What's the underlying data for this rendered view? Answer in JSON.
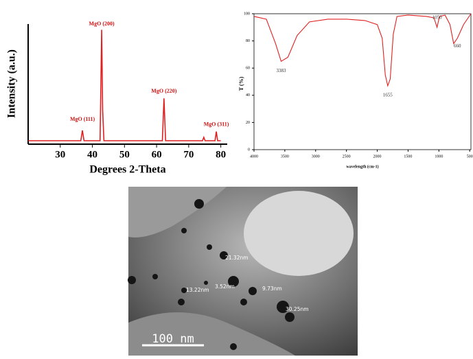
{
  "chart_data": [
    {
      "type": "line",
      "x_label": "Degrees 2-Theta",
      "y_label": "Intensity (a.u.)",
      "x": [
        20,
        36.4,
        36.9,
        37.4,
        42.4,
        42.9,
        43.2,
        43.6,
        61.8,
        62.3,
        62.8,
        74.3,
        74.7,
        75.1,
        78.2,
        78.6,
        79.0,
        80
      ],
      "values": [
        3,
        3,
        12,
        3,
        3,
        100,
        30,
        3,
        3,
        40,
        3,
        3,
        6,
        3,
        3,
        11,
        3,
        3
      ],
      "color": "#e02020",
      "xlim": [
        20,
        82
      ],
      "ylim": [
        0,
        105
      ],
      "xticks": [
        30,
        40,
        50,
        60,
        70,
        80
      ],
      "annotations": [
        "MgO (111)",
        "MgO (200)",
        "MgO (220)",
        "MgO (311)"
      ]
    },
    {
      "type": "line",
      "x_label": "wavelength (cm-1)",
      "y_label": "T (%)",
      "x": [
        4000,
        3800,
        3650,
        3560,
        3450,
        3300,
        3100,
        2800,
        2500,
        2200,
        2000,
        1920,
        1870,
        1830,
        1790,
        1740,
        1680,
        1500,
        1200,
        1080,
        1030,
        990,
        900,
        820,
        760,
        700,
        600,
        480
      ],
      "values": [
        98,
        96,
        78,
        65,
        68,
        84,
        94,
        96,
        96,
        95,
        92,
        82,
        55,
        47,
        52,
        85,
        98,
        99,
        98,
        97,
        90,
        98,
        99,
        92,
        78,
        82,
        92,
        100
      ],
      "color": "#e02020",
      "xlim": [
        4000,
        480
      ],
      "ylim": [
        0,
        100
      ],
      "xticks": [
        4000,
        3500,
        3000,
        2500,
        2000,
        1500,
        1000,
        500
      ],
      "yticks": [
        0,
        20,
        40,
        60,
        80,
        100
      ],
      "annotations": [
        "3383",
        "1655",
        "1050",
        "660"
      ]
    }
  ],
  "image": {
    "measurements": [
      "21.32nm",
      "13.22nm",
      "3.52nm",
      "9.73nm",
      "30.25nm"
    ],
    "scale_bar": "100 nm"
  }
}
